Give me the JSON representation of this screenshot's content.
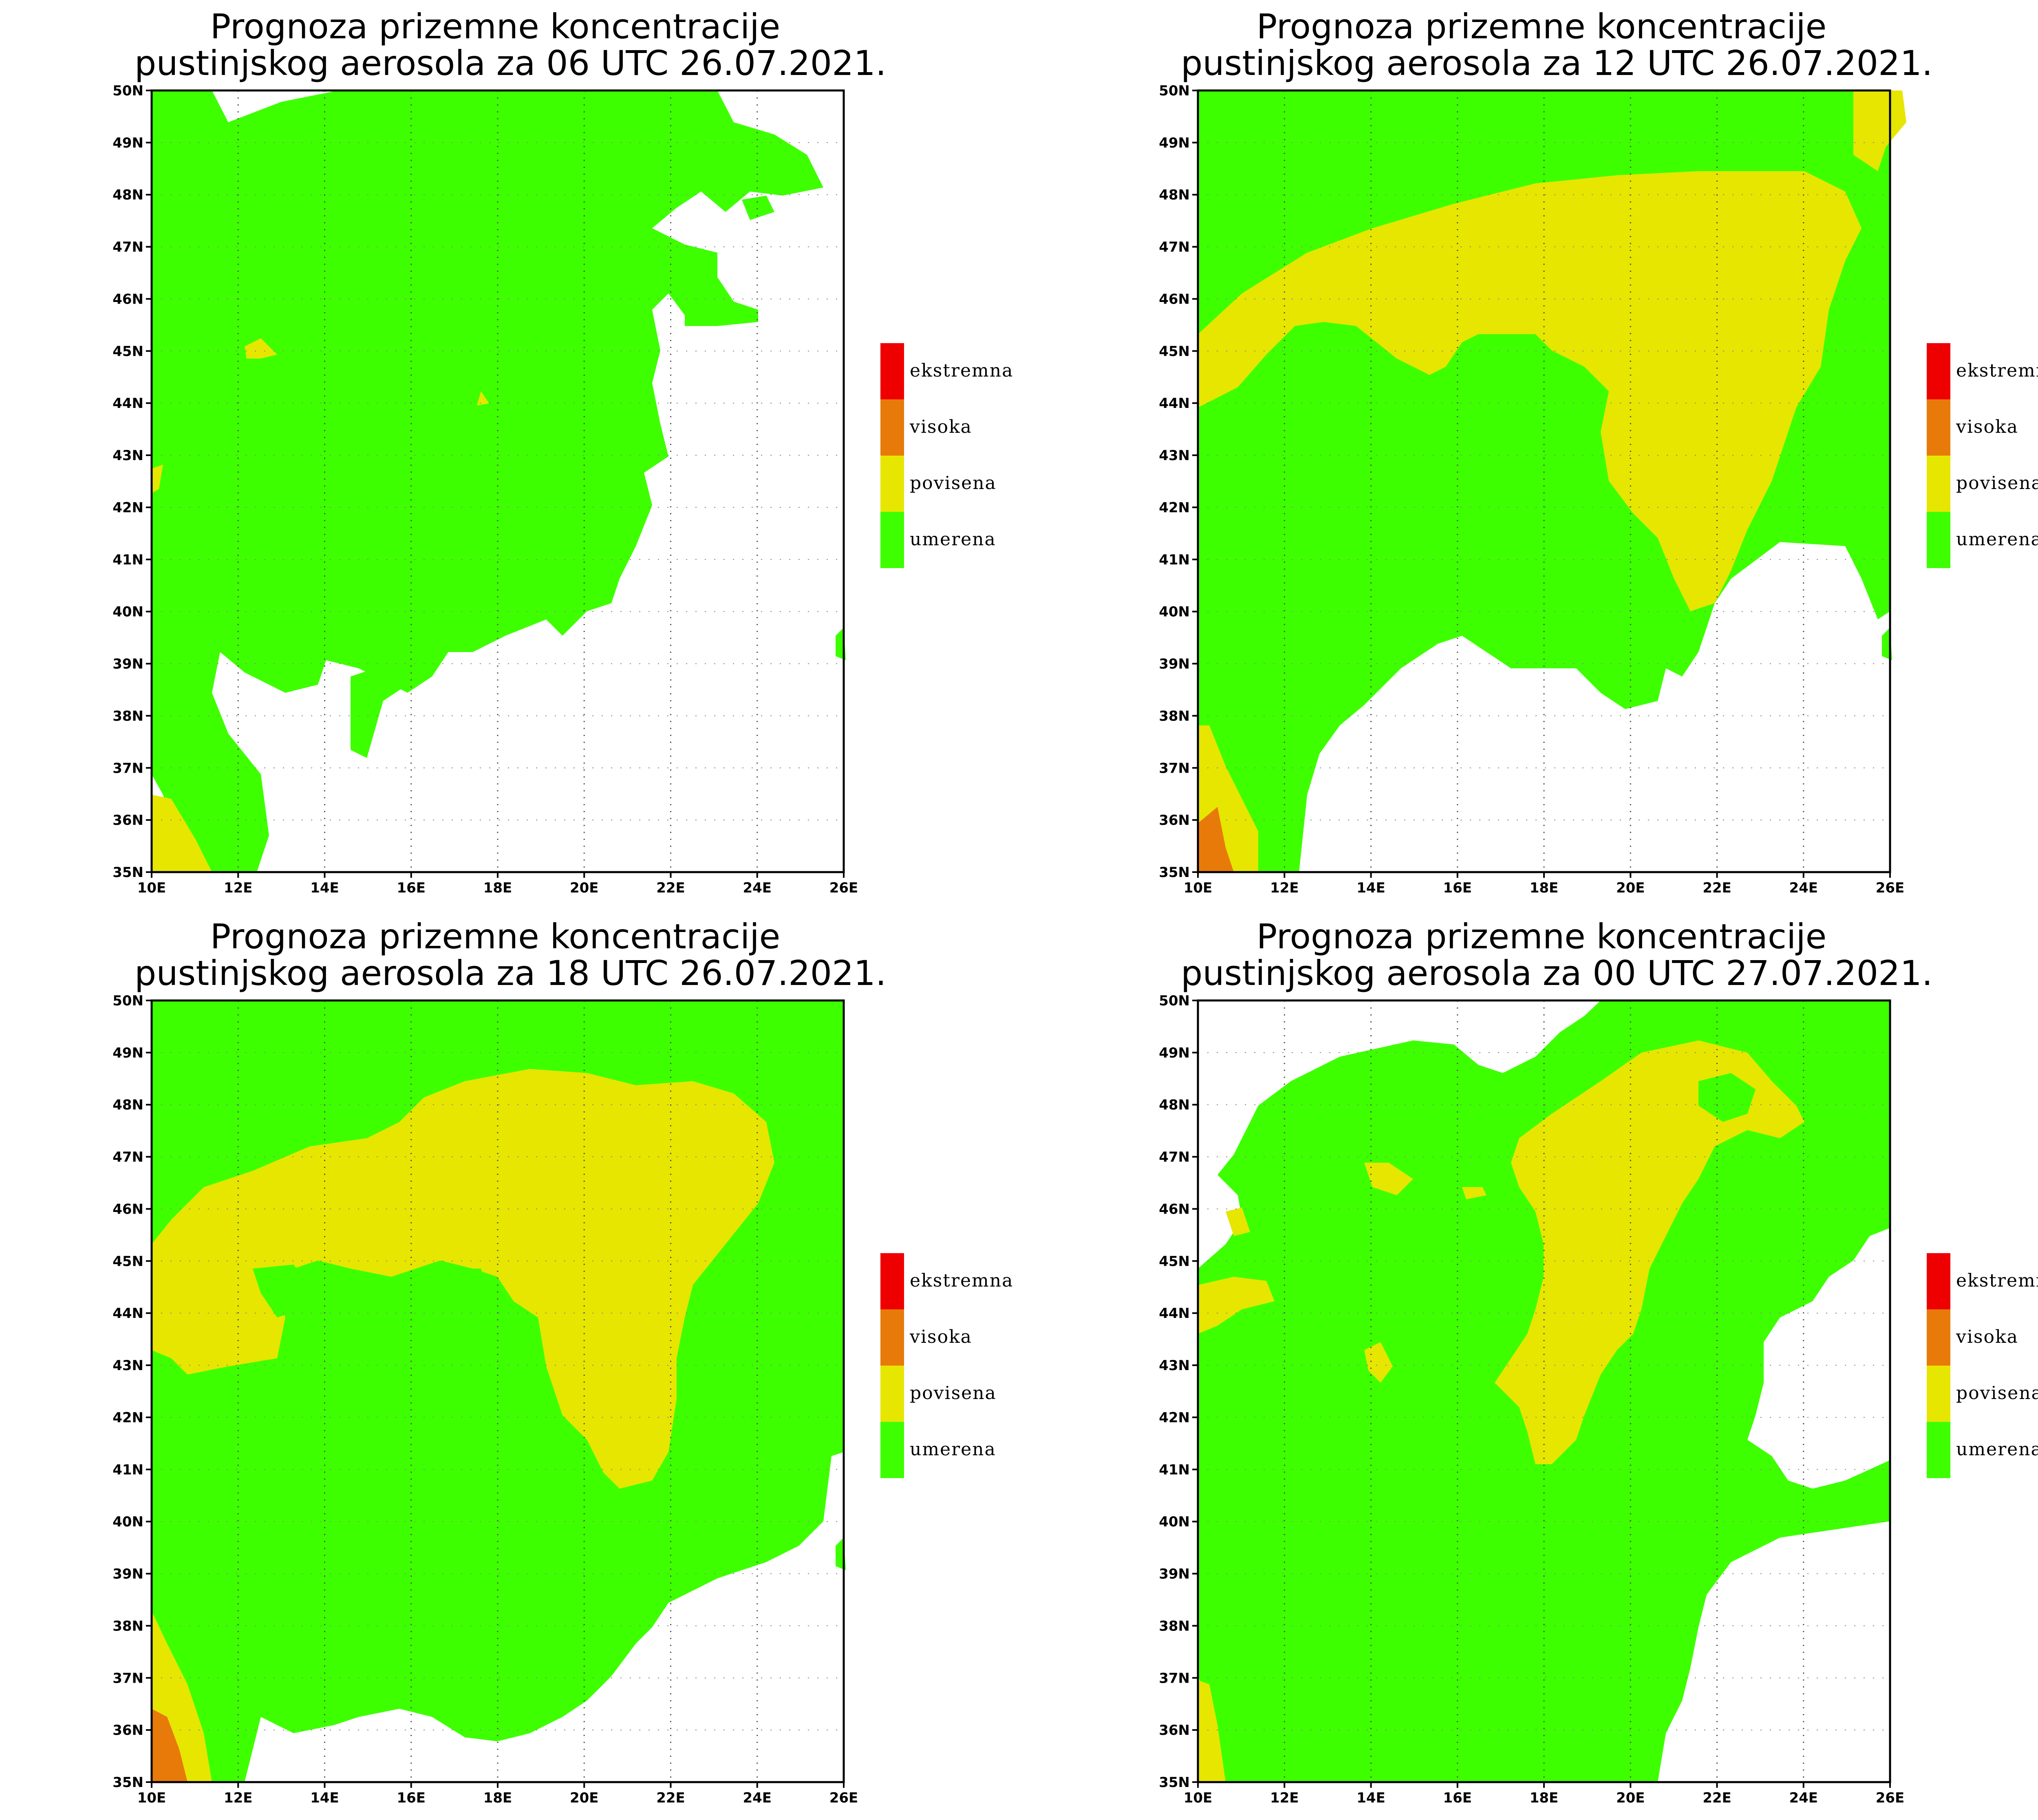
{
  "panels": [
    {
      "title_line1": "Prognoza prizemne koncentracije",
      "title_line2": "pustinjskog aerosola za 06 UTC 26.07.2021."
    },
    {
      "title_line1": "Prognoza prizemne koncentracije",
      "title_line2": "pustinjskog aerosola za 12 UTC 26.07.2021."
    },
    {
      "title_line1": "Prognoza prizemne koncentracije",
      "title_line2": "pustinjskog aerosola za 18 UTC 26.07.2021."
    },
    {
      "title_line1": "Prognoza prizemne koncentracije",
      "title_line2": "pustinjskog aerosola za 00 UTC 27.07.2021."
    }
  ],
  "axes": {
    "x_ticks": [
      "10E",
      "12E",
      "14E",
      "16E",
      "18E",
      "20E",
      "22E",
      "24E",
      "26E"
    ],
    "y_ticks": [
      "50N",
      "49N",
      "48N",
      "47N",
      "46N",
      "45N",
      "44N",
      "43N",
      "42N",
      "41N",
      "40N",
      "39N",
      "38N",
      "37N",
      "36N",
      "35N"
    ],
    "lon_range": [
      10,
      26
    ],
    "lat_range": [
      35,
      50
    ],
    "grid": "dotted"
  },
  "legend": [
    {
      "label": "ekstremna",
      "color": "#ee0000"
    },
    {
      "label": "visoka",
      "color": "#e87a0a"
    },
    {
      "label": "povisena",
      "color": "#e6e600"
    },
    {
      "label": "umerena",
      "color": "#3dff00"
    }
  ]
}
